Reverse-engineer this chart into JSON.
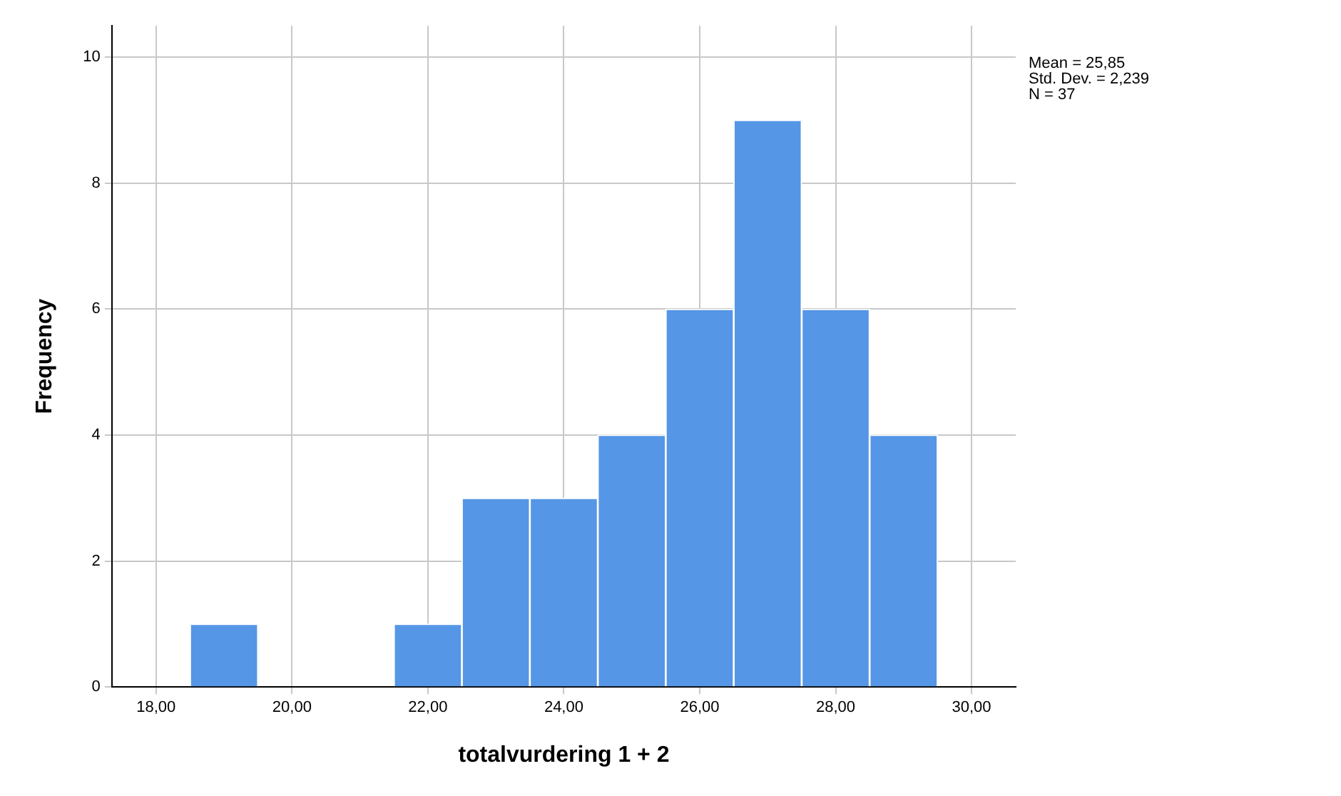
{
  "chart_data": {
    "type": "histogram",
    "xlabel": "totalvurdering 1 + 2",
    "ylabel": "Frequency",
    "bins": [
      18.5,
      19.5,
      20.5,
      21.5,
      22.5,
      23.5,
      24.5,
      25.5,
      26.5,
      27.5,
      28.5,
      29.5
    ],
    "values": [
      1,
      0,
      0,
      1,
      3,
      3,
      4,
      6,
      9,
      6,
      4
    ],
    "color": "#5596e6",
    "xlim": [
      17.35,
      30.65
    ],
    "xticks": [
      {
        "value": 18,
        "label": "18,00"
      },
      {
        "value": 20,
        "label": "20,00"
      },
      {
        "value": 22,
        "label": "22,00"
      },
      {
        "value": 24,
        "label": "24,00"
      },
      {
        "value": 26,
        "label": "26,00"
      },
      {
        "value": 28,
        "label": "28,00"
      },
      {
        "value": 30,
        "label": "30,00"
      }
    ],
    "ylim": [
      0,
      10.5
    ],
    "yticks": [
      0,
      2,
      4,
      6,
      8,
      10
    ],
    "grid": true,
    "annotations": [
      "Mean = 25,85",
      "Std. Dev. = 2,239",
      "N = 37"
    ]
  }
}
